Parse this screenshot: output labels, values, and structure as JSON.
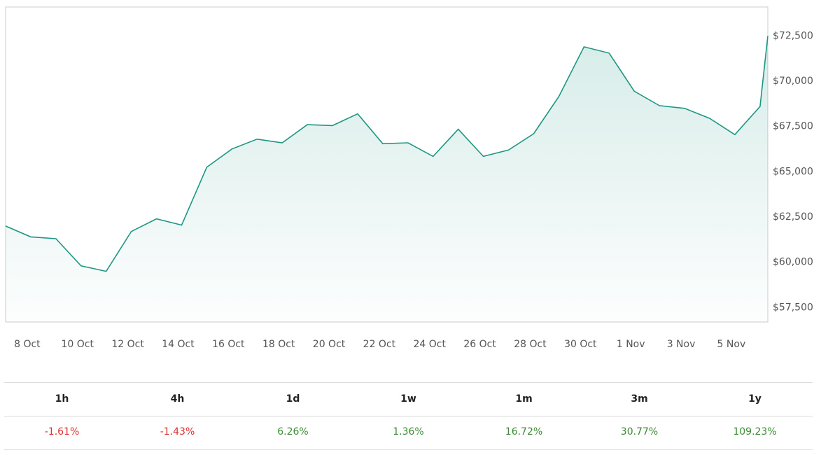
{
  "chart_data": {
    "type": "area",
    "x": [
      7.14,
      8.14,
      9.14,
      10.14,
      11.14,
      12.14,
      13.14,
      14.14,
      15.14,
      16.14,
      17.14,
      18.14,
      19.14,
      20.14,
      21.14,
      22.14,
      23.14,
      24.14,
      25.14,
      26.14,
      27.14,
      28.14,
      29.14,
      30.14,
      31.14,
      32.14,
      33.14,
      34.14,
      35.14,
      36.14,
      37.14,
      37.45
    ],
    "values": [
      62000,
      61400,
      61300,
      59800,
      59500,
      61700,
      62400,
      62050,
      65250,
      66260,
      66800,
      66600,
      67600,
      67550,
      68200,
      66550,
      66600,
      65850,
      67350,
      65850,
      66200,
      67100,
      69150,
      71900,
      71550,
      69450,
      68650,
      68500,
      67950,
      67050,
      68600,
      72500
    ],
    "color": "#1f9683",
    "xlim": [
      7.14,
      37.45
    ],
    "xticks": [
      {
        "value": 8,
        "label": "8 Oct"
      },
      {
        "value": 10,
        "label": "10 Oct"
      },
      {
        "value": 12,
        "label": "12 Oct"
      },
      {
        "value": 14,
        "label": "14 Oct"
      },
      {
        "value": 16,
        "label": "16 Oct"
      },
      {
        "value": 18,
        "label": "18 Oct"
      },
      {
        "value": 20,
        "label": "20 Oct"
      },
      {
        "value": 22,
        "label": "22 Oct"
      },
      {
        "value": 24,
        "label": "24 Oct"
      },
      {
        "value": 26,
        "label": "26 Oct"
      },
      {
        "value": 28,
        "label": "28 Oct"
      },
      {
        "value": 30,
        "label": "30 Oct"
      },
      {
        "value": 32,
        "label": "1 Nov"
      },
      {
        "value": 34,
        "label": "3 Nov"
      },
      {
        "value": 36,
        "label": "5 Nov"
      }
    ],
    "ylim": [
      56700,
      74100
    ],
    "yticks": [
      {
        "value": 57500,
        "label": "$57,500"
      },
      {
        "value": 60000,
        "label": "$60,000"
      },
      {
        "value": 62500,
        "label": "$62,500"
      },
      {
        "value": 65000,
        "label": "$65,000"
      },
      {
        "value": 67500,
        "label": "$67,500"
      },
      {
        "value": 70000,
        "label": "$70,000"
      },
      {
        "value": 72500,
        "label": "$72,500"
      }
    ]
  },
  "table": {
    "headers": [
      "1h",
      "4h",
      "1d",
      "1w",
      "1m",
      "3m",
      "1y"
    ],
    "values": [
      "-1.61%",
      "-1.43%",
      "6.26%",
      "1.36%",
      "16.72%",
      "30.77%",
      "109.23%"
    ],
    "colors": [
      "#e03131",
      "#e03131",
      "#3d8b37",
      "#3d8b37",
      "#3d8b37",
      "#3d8b37",
      "#3d8b37"
    ]
  }
}
